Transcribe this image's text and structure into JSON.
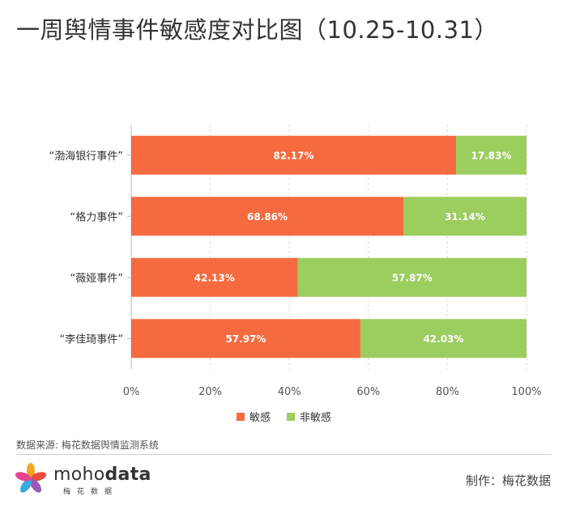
{
  "title": "一周舆情事件敏感度对比图（10.25-10.31）",
  "chart_data": {
    "type": "bar",
    "orientation": "horizontal",
    "stacked": true,
    "categories": [
      "“渤海银行事件”",
      "“格力事件”",
      "“薇娅事件”",
      "“李佳琦事件”"
    ],
    "series": [
      {
        "name": "敏感",
        "color": "#f56b3f",
        "values": [
          82.17,
          68.86,
          42.13,
          57.97
        ],
        "labels": [
          "82.17%",
          "68.86%",
          "42.13%",
          "57.97%"
        ]
      },
      {
        "name": "非敏感",
        "color": "#9ccd5f",
        "values": [
          17.83,
          31.14,
          57.87,
          42.03
        ],
        "labels": [
          "17.83%",
          "31.14%",
          "57.87%",
          "42.03%"
        ]
      }
    ],
    "xlim": [
      0,
      100
    ],
    "xticks": [
      "0%",
      "20%",
      "40%",
      "60%",
      "80%",
      "100%"
    ],
    "grid": true,
    "legend": "bottom"
  },
  "footer": {
    "source": "数据来源: 梅花数据舆情监测系统",
    "logo_text_light": "moho",
    "logo_text_bold": "data",
    "logo_sub": "梅花数据",
    "producer": "制作：梅花数据"
  }
}
